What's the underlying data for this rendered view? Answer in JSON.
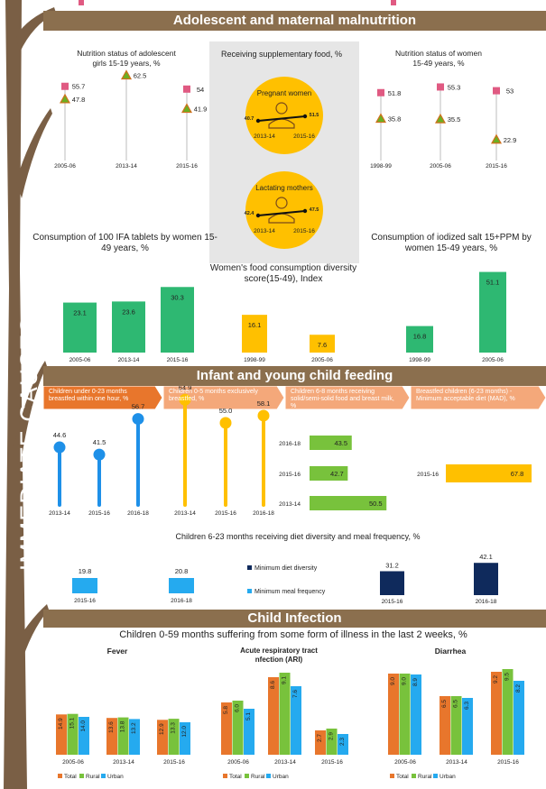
{
  "colors": {
    "brown": "#8b6f4e",
    "tree": "#7a5f45",
    "orange": "#e8762c",
    "arrow_orange": "#f4a87a",
    "yellow": "#ffc000",
    "green": "#2eb872",
    "light_green": "#78c23c",
    "blue": "#1e90e8",
    "navy": "#0f2a5c",
    "pink": "#e8609a",
    "sky": "#25aaef",
    "anemia_square": "#e05a82"
  },
  "page": {
    "vertical_title": "IMMEDIATE CAUSES",
    "section1_title": "Adolescent and maternal malnutrition",
    "section2_title": "Infant and young child feeding",
    "section3_title": "Child Infection"
  },
  "supplementary": {
    "title": "Receiving supplementary food, %",
    "pregnant_label": "Pregnant women",
    "pregnant_values": [
      "40.7",
      "51.5"
    ],
    "lactating_label": "Lactating mothers",
    "lactating_values": [
      "42.4",
      "47.5"
    ],
    "years": [
      "2013-14",
      "2015-16"
    ]
  },
  "ifa_title": "Consumption of 100 IFA tablets by women 15-49 years, %",
  "diversity_title": "Women's food consumption diversity score(15-49), Index",
  "salt_title": "Consumption of iodized salt 15+PPM by women 15-49 years, %",
  "steps": [
    "Children under 0-23 months breastfed within one hour, %",
    "Children 0-5 months exclusively breastfed, %",
    "Children 6-8 months receiving solid/semi-solid food and breast milk, %",
    "Breastfed children (6-23 months) - Minimum acceptable diet (MAD), %"
  ],
  "diet_title": "Children 6-23 months receiving diet diversity and meal frequency, %",
  "illness_title": "Children 0-59 months suffering from some form of illness in the last 2 weeks, %",
  "chart_data": [
    {
      "type": "scatter",
      "title": "Nutrition status of adolescent girls 15-19 years, %",
      "x": [
        "2005-06",
        "2013-14",
        "2015-16"
      ],
      "series": [
        {
          "name": "Anemia",
          "values": [
            55.7,
            null,
            54
          ]
        },
        {
          "name": "Low BMI <18.5",
          "values": [
            47.8,
            62.5,
            41.9
          ]
        }
      ],
      "labels": [
        "55.7",
        "47.8",
        "62.5",
        "54",
        "41.9"
      ],
      "ylim": [
        0,
        100
      ],
      "legend": [
        "Anemia",
        "Low BMI <18.5"
      ]
    },
    {
      "type": "scatter",
      "title": "Nutrition status of women 15-49 years, %",
      "x": [
        "1998-99",
        "2005-06",
        "2015-16"
      ],
      "series": [
        {
          "name": "Anemia",
          "values": [
            51.8,
            55.3,
            53
          ]
        },
        {
          "name": "Low BMI <18.5",
          "values": [
            35.8,
            35.5,
            22.9
          ]
        }
      ],
      "labels": [
        "51.8",
        "35.8",
        "55.3",
        "35.5",
        "53",
        "22.9"
      ],
      "ylim": [
        0,
        100
      ],
      "legend": [
        "Anemia",
        "Low BMI <18.5"
      ]
    },
    {
      "type": "bar",
      "title": "Consumption of 100 IFA tablets by women 15-49 years, %",
      "categories": [
        "2005-06",
        "2013-14",
        "2015-16"
      ],
      "values": [
        23.1,
        23.6,
        30.3
      ],
      "labels": [
        "23.1",
        "23.6",
        "30.3"
      ],
      "ylim": [
        0,
        32
      ]
    },
    {
      "type": "bar",
      "title": "Women's food consumption diversity score(15-49), Index",
      "categories": [
        "1998-99",
        "2005-06"
      ],
      "values": [
        16.1,
        7.6
      ],
      "labels": [
        "16.1",
        "7.6"
      ],
      "ylim": [
        0,
        32
      ]
    },
    {
      "type": "bar",
      "title": "Consumption of iodized salt 15+PPM by women 15-49 years, %",
      "categories": [
        "1998-99",
        "2005-06"
      ],
      "values": [
        16.8,
        51.1
      ],
      "labels": [
        "16.8",
        "51.1"
      ],
      "ylim": [
        0,
        55
      ]
    },
    {
      "type": "lollipop",
      "title": "Children under 0-23 months breastfed within one hour, %",
      "categories": [
        "2013-14",
        "2015-16",
        "2016-18"
      ],
      "values": [
        44.6,
        41.5,
        56.7
      ],
      "labels": [
        "44.6",
        "41.5",
        "56.7"
      ]
    },
    {
      "type": "lollipop",
      "title": "Children 0-5 months exclusively breastfed, %",
      "categories": [
        "2013-14",
        "2015-16",
        "2016-18"
      ],
      "values": [
        64.9,
        55.0,
        58.1
      ],
      "labels": [
        "64.9",
        "55.0",
        "58.1"
      ]
    },
    {
      "type": "bar",
      "orientation": "horizontal",
      "title": "Children 6-8 months receiving solid/semi-solid food and breast milk, %",
      "categories": [
        "2016-18",
        "2015-16",
        "2013-14"
      ],
      "values": [
        43.5,
        42.7,
        50.5
      ],
      "labels": [
        "43.5",
        "42.7",
        "50.5"
      ]
    },
    {
      "type": "bar",
      "orientation": "horizontal",
      "title": "Breastfed children (6-23 months) - Minimum acceptable diet (MAD), %",
      "categories": [
        "2015-16"
      ],
      "values": [
        67.8
      ],
      "labels": [
        "67.8"
      ]
    },
    {
      "type": "bar",
      "title": "Children 6-23 months receiving diet diversity and meal frequency, %",
      "series": [
        {
          "name": "Minimum meal frequency",
          "categories": [
            "2015-16",
            "2016-18"
          ],
          "values": [
            19.8,
            20.8
          ],
          "labels": [
            "19.8",
            "20.8"
          ]
        },
        {
          "name": "Minimum diet diversity",
          "categories": [
            "2015-16",
            "2016-18"
          ],
          "values": [
            31.2,
            42.1
          ],
          "labels": [
            "31.2",
            "42.1"
          ]
        }
      ],
      "legend": [
        "Minimum diet diversity",
        "Minimum meal frequency"
      ]
    },
    {
      "type": "bar",
      "title": "Fever",
      "categories": [
        "2005-06",
        "2013-14",
        "2015-16"
      ],
      "series": [
        {
          "name": "Total",
          "values": [
            14.9,
            13.6,
            12.9
          ],
          "labels": [
            "14.9",
            "13.6",
            "12.9"
          ]
        },
        {
          "name": "Rural",
          "values": [
            15.1,
            13.8,
            13.3
          ],
          "labels": [
            "15.1",
            "13.8",
            "13.3"
          ]
        },
        {
          "name": "Urban",
          "values": [
            14.0,
            13.2,
            12.0
          ],
          "labels": [
            "14.0",
            "13.2",
            "12.0"
          ]
        }
      ],
      "legend": [
        "Total",
        "Rural",
        "Urban"
      ]
    },
    {
      "type": "bar",
      "title": "Acute respiratory tract infection (ARI)",
      "categories": [
        "2005-06",
        "2013-14",
        "2015-16"
      ],
      "series": [
        {
          "name": "Total",
          "values": [
            5.8,
            8.6,
            2.7
          ],
          "labels": [
            "5.8",
            "8.6",
            "2.7"
          ]
        },
        {
          "name": "Rural",
          "values": [
            6.0,
            9.1,
            2.9
          ],
          "labels": [
            "6.0",
            "9.1",
            "2.9"
          ]
        },
        {
          "name": "Urban",
          "values": [
            5.1,
            7.6,
            2.3
          ],
          "labels": [
            "5.1",
            "7.6",
            "2.3"
          ]
        }
      ],
      "legend": [
        "Total",
        "Rural",
        "Urban"
      ]
    },
    {
      "type": "bar",
      "title": "Diarrhea",
      "categories": [
        "2005-06",
        "2013-14",
        "2015-16"
      ],
      "series": [
        {
          "name": "Total",
          "values": [
            9.0,
            6.5,
            9.2
          ],
          "labels": [
            "9.0",
            "6.5",
            "9.2"
          ]
        },
        {
          "name": "Rural",
          "values": [
            9.0,
            6.5,
            9.5
          ],
          "labels": [
            "9.0",
            "6.5",
            "9.5"
          ]
        },
        {
          "name": "Urban",
          "values": [
            8.9,
            6.3,
            8.2
          ],
          "labels": [
            "8.9",
            "6.3",
            "8.2"
          ]
        }
      ],
      "legend": [
        "Total",
        "Rural",
        "Urban"
      ]
    }
  ]
}
